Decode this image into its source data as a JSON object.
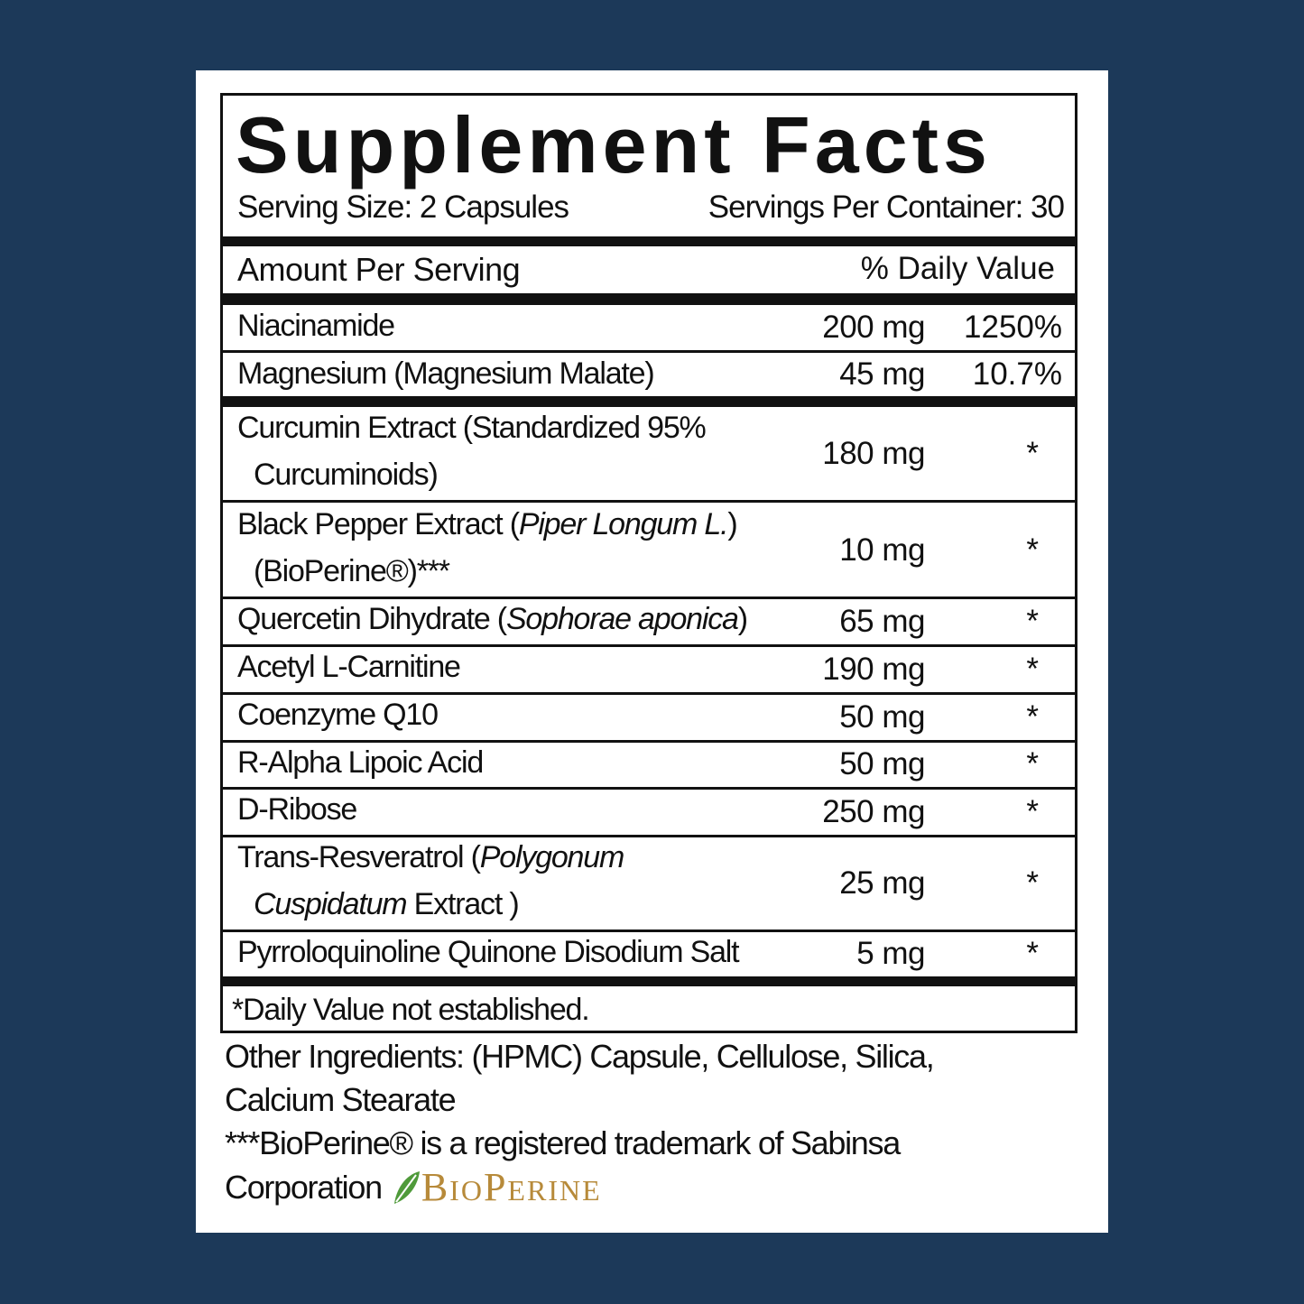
{
  "title": "Supplement Facts",
  "serving_size": "Serving Size: 2 Capsules",
  "servings_per_container": "Servings Per Container: 30",
  "header": {
    "amount": "Amount Per Serving",
    "daily_value": "% Daily Value"
  },
  "rows": [
    {
      "name": [
        [
          {
            "t": "Niacinamide"
          }
        ]
      ],
      "amount": "200 mg",
      "dv": "1250%"
    },
    {
      "name": [
        [
          {
            "t": "Magnesium (Magnesium Malate)"
          }
        ]
      ],
      "amount": "45 mg",
      "dv": "10.7%"
    },
    {
      "name": [
        [
          {
            "t": "Curcumin Extract (Standardized 95%"
          }
        ],
        [
          {
            "t": "Curcuminoids)"
          }
        ]
      ],
      "amount": "180 mg",
      "dv": "*"
    },
    {
      "name": [
        [
          {
            "t": "Black Pepper Extract ("
          },
          {
            "t": "Piper Longum L.",
            "i": true
          },
          {
            "t": ")"
          }
        ],
        [
          {
            "t": "(BioPerine®)***"
          }
        ]
      ],
      "amount": "10 mg",
      "dv": "*"
    },
    {
      "name": [
        [
          {
            "t": "Quercetin Dihydrate ("
          },
          {
            "t": "Sophorae aponica",
            "i": true
          },
          {
            "t": ")"
          }
        ]
      ],
      "amount": "65 mg",
      "dv": "*"
    },
    {
      "name": [
        [
          {
            "t": "Acetyl L-Carnitine"
          }
        ]
      ],
      "amount": "190 mg",
      "dv": "*"
    },
    {
      "name": [
        [
          {
            "t": "Coenzyme Q10"
          }
        ]
      ],
      "amount": "50 mg",
      "dv": "*"
    },
    {
      "name": [
        [
          {
            "t": "R-Alpha Lipoic Acid"
          }
        ]
      ],
      "amount": "50 mg",
      "dv": "*"
    },
    {
      "name": [
        [
          {
            "t": "D-Ribose"
          }
        ]
      ],
      "amount": "250 mg",
      "dv": "*"
    },
    {
      "name": [
        [
          {
            "t": "Trans-Resveratrol ("
          },
          {
            "t": "Polygonum",
            "i": true
          }
        ],
        [
          {
            "t": "Cuspidatum",
            "i": true
          },
          {
            "t": " Extract )"
          }
        ]
      ],
      "amount": "25 mg",
      "dv": "*"
    },
    {
      "name": [
        [
          {
            "t": "Pyrroloquinoline Quinone Disodium Salt"
          }
        ]
      ],
      "amount": "5 mg",
      "dv": "*"
    }
  ],
  "footnote": "*Daily Value not established.",
  "other_ingredients_1": "Other Ingredients: (HPMC) Capsule, Cellulose, Silica,",
  "other_ingredients_2": "Calcium Stearate",
  "trademark_1": "***BioPerine® is a registered trademark of Sabinsa",
  "trademark_2": "Corporation",
  "logo_text": "BioPerine",
  "colors": {
    "background": "#1c3959",
    "logo": "#b78a3a",
    "leaf": "#4f9a3a"
  }
}
